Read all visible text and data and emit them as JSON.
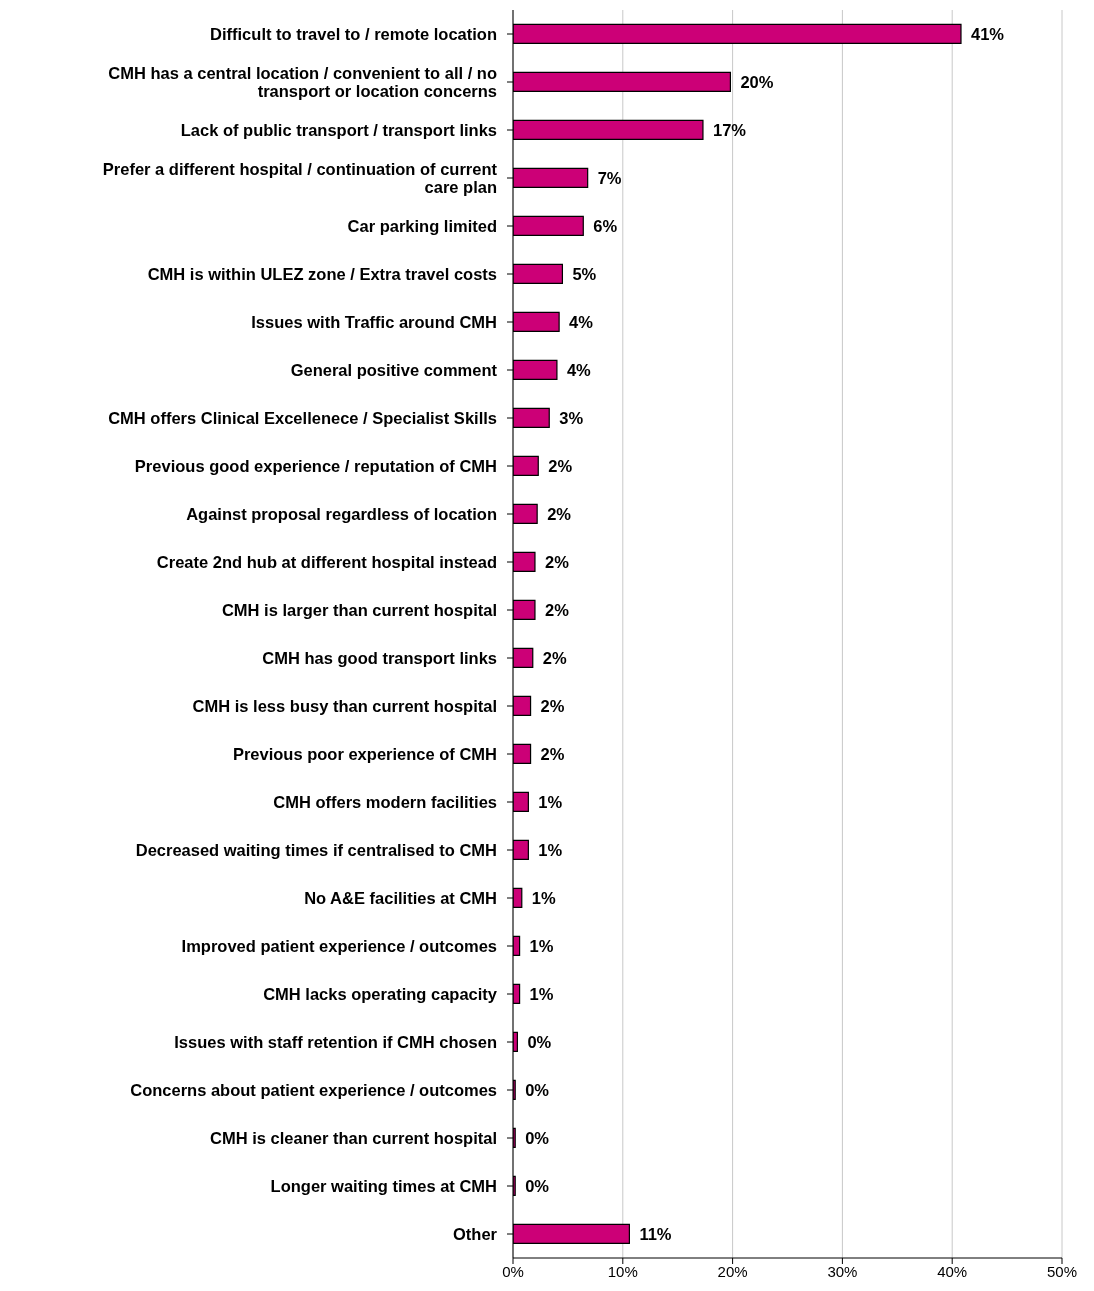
{
  "chart_data": {
    "type": "bar",
    "orientation": "horizontal",
    "categories": [
      "Difficult to travel to / remote location",
      "CMH has a central location / convenient to all / no transport or location concerns",
      "Lack of public transport / transport links",
      "Prefer a different hospital  / continuation of current care plan",
      "Car parking limited",
      "CMH is within ULEZ zone / Extra travel costs",
      "Issues with Traffic around CMH",
      "General positive comment",
      "CMH offers Clinical Excellenece / Specialist Skills",
      "Previous good experience / reputation of CMH",
      "Against proposal regardless of location",
      "Create 2nd hub at different hospital instead",
      "CMH is larger than current hospital",
      "CMH has good transport links",
      "CMH is less busy than current hospital",
      "Previous poor experience of CMH",
      "CMH offers modern facilities",
      "Decreased waiting times if centralised to CMH",
      "No A&E facilities at CMH",
      "Improved patient experience / outcomes",
      "CMH lacks operating capacity",
      "Issues with staff retention if CMH chosen",
      "Concerns about patient experience / outcomes",
      "CMH is cleaner than current hospital",
      "Longer waiting times at CMH",
      "Other"
    ],
    "values": [
      40.8,
      19.8,
      17.3,
      6.8,
      6.4,
      4.5,
      4.2,
      4.0,
      3.3,
      2.3,
      2.2,
      2.0,
      2.0,
      1.8,
      1.6,
      1.6,
      1.4,
      1.4,
      0.8,
      0.6,
      0.6,
      0.4,
      0.2,
      0.2,
      0.2,
      10.6
    ],
    "value_labels": [
      "41%",
      "20%",
      "17%",
      "7%",
      "6%",
      "5%",
      "4%",
      "4%",
      "3%",
      "2%",
      "2%",
      "2%",
      "2%",
      "2%",
      "2%",
      "2%",
      "1%",
      "1%",
      "1%",
      "1%",
      "1%",
      "0%",
      "0%",
      "0%",
      "0%",
      "11%"
    ],
    "color": "#cc0077",
    "xlim": [
      0,
      50
    ],
    "xticks": [
      {
        "value": 0,
        "label": "0%"
      },
      {
        "value": 10,
        "label": "10%"
      },
      {
        "value": 20,
        "label": "20%"
      },
      {
        "value": 30,
        "label": "30%"
      },
      {
        "value": 40,
        "label": "40%"
      },
      {
        "value": 50,
        "label": "50%"
      }
    ],
    "grid": "x"
  }
}
